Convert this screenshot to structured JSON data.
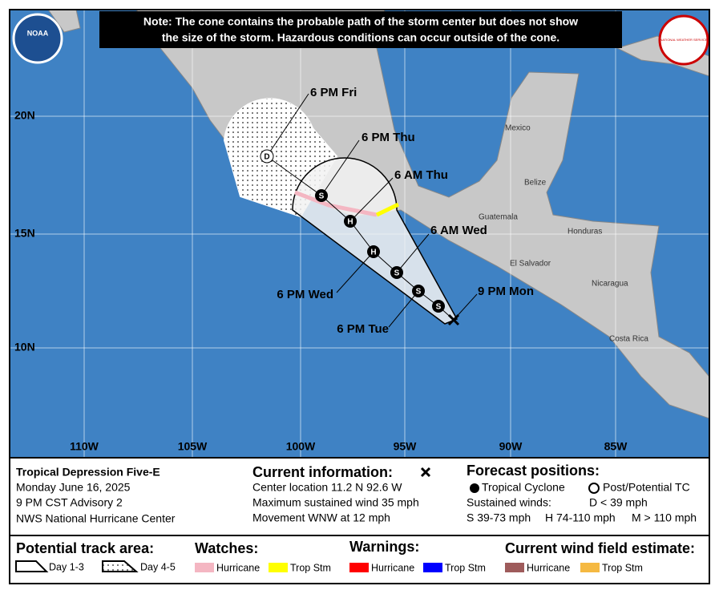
{
  "note": [
    "Note: The cone contains the probable path of the storm center but does not show",
    "the size of the storm. Hazardous conditions can occur outside of the cone."
  ],
  "map": {
    "logos": [
      "NOAA",
      "NATIONAL WEATHER SERVICE"
    ],
    "lat_labels": [
      "20N",
      "15N",
      "10N"
    ],
    "lon_labels": [
      "110W",
      "105W",
      "100W",
      "95W",
      "90W",
      "85W"
    ],
    "places": [
      "Mexico",
      "Belize",
      "Guatemala",
      "Honduras",
      "El Salvador",
      "Nicaragua",
      "Costa Rica"
    ],
    "forecast_labels": [
      "6 PM Fri",
      "6 PM Thu",
      "6 AM Thu",
      "6 AM Wed",
      "9 PM Mon",
      "6 PM Wed",
      "6 PM Tue"
    ],
    "markers": [
      "D",
      "S",
      "H",
      "H",
      "S",
      "S",
      "S"
    ]
  },
  "info": {
    "storm": [
      "Tropical Depression Five-E",
      "Monday June 16, 2025",
      "9 PM CST Advisory 2",
      "NWS National Hurricane Center"
    ],
    "current_title": "Current information:",
    "current": [
      "Center location 11.2 N 92.6 W",
      "Maximum sustained wind 35 mph",
      "Movement WNW at 12 mph"
    ],
    "forecast_title": "Forecast positions:",
    "forecast": [
      "Tropical Cyclone",
      "Post/Potential TC",
      "Sustained winds:",
      "D < 39 mph",
      "S 39-73 mph",
      "H 74-110 mph",
      "M > 110 mph"
    ]
  },
  "legend": {
    "track_title": "Potential track area:",
    "track": [
      "Day 1-3",
      "Day 4-5"
    ],
    "watches_title": "Watches:",
    "watches": [
      "Hurricane",
      "Trop Stm"
    ],
    "warnings_title": "Warnings:",
    "warnings": [
      "Hurricane",
      "Trop Stm"
    ],
    "wind_title": "Current wind field estimate:",
    "wind": [
      "Hurricane",
      "Trop Stm"
    ]
  }
}
